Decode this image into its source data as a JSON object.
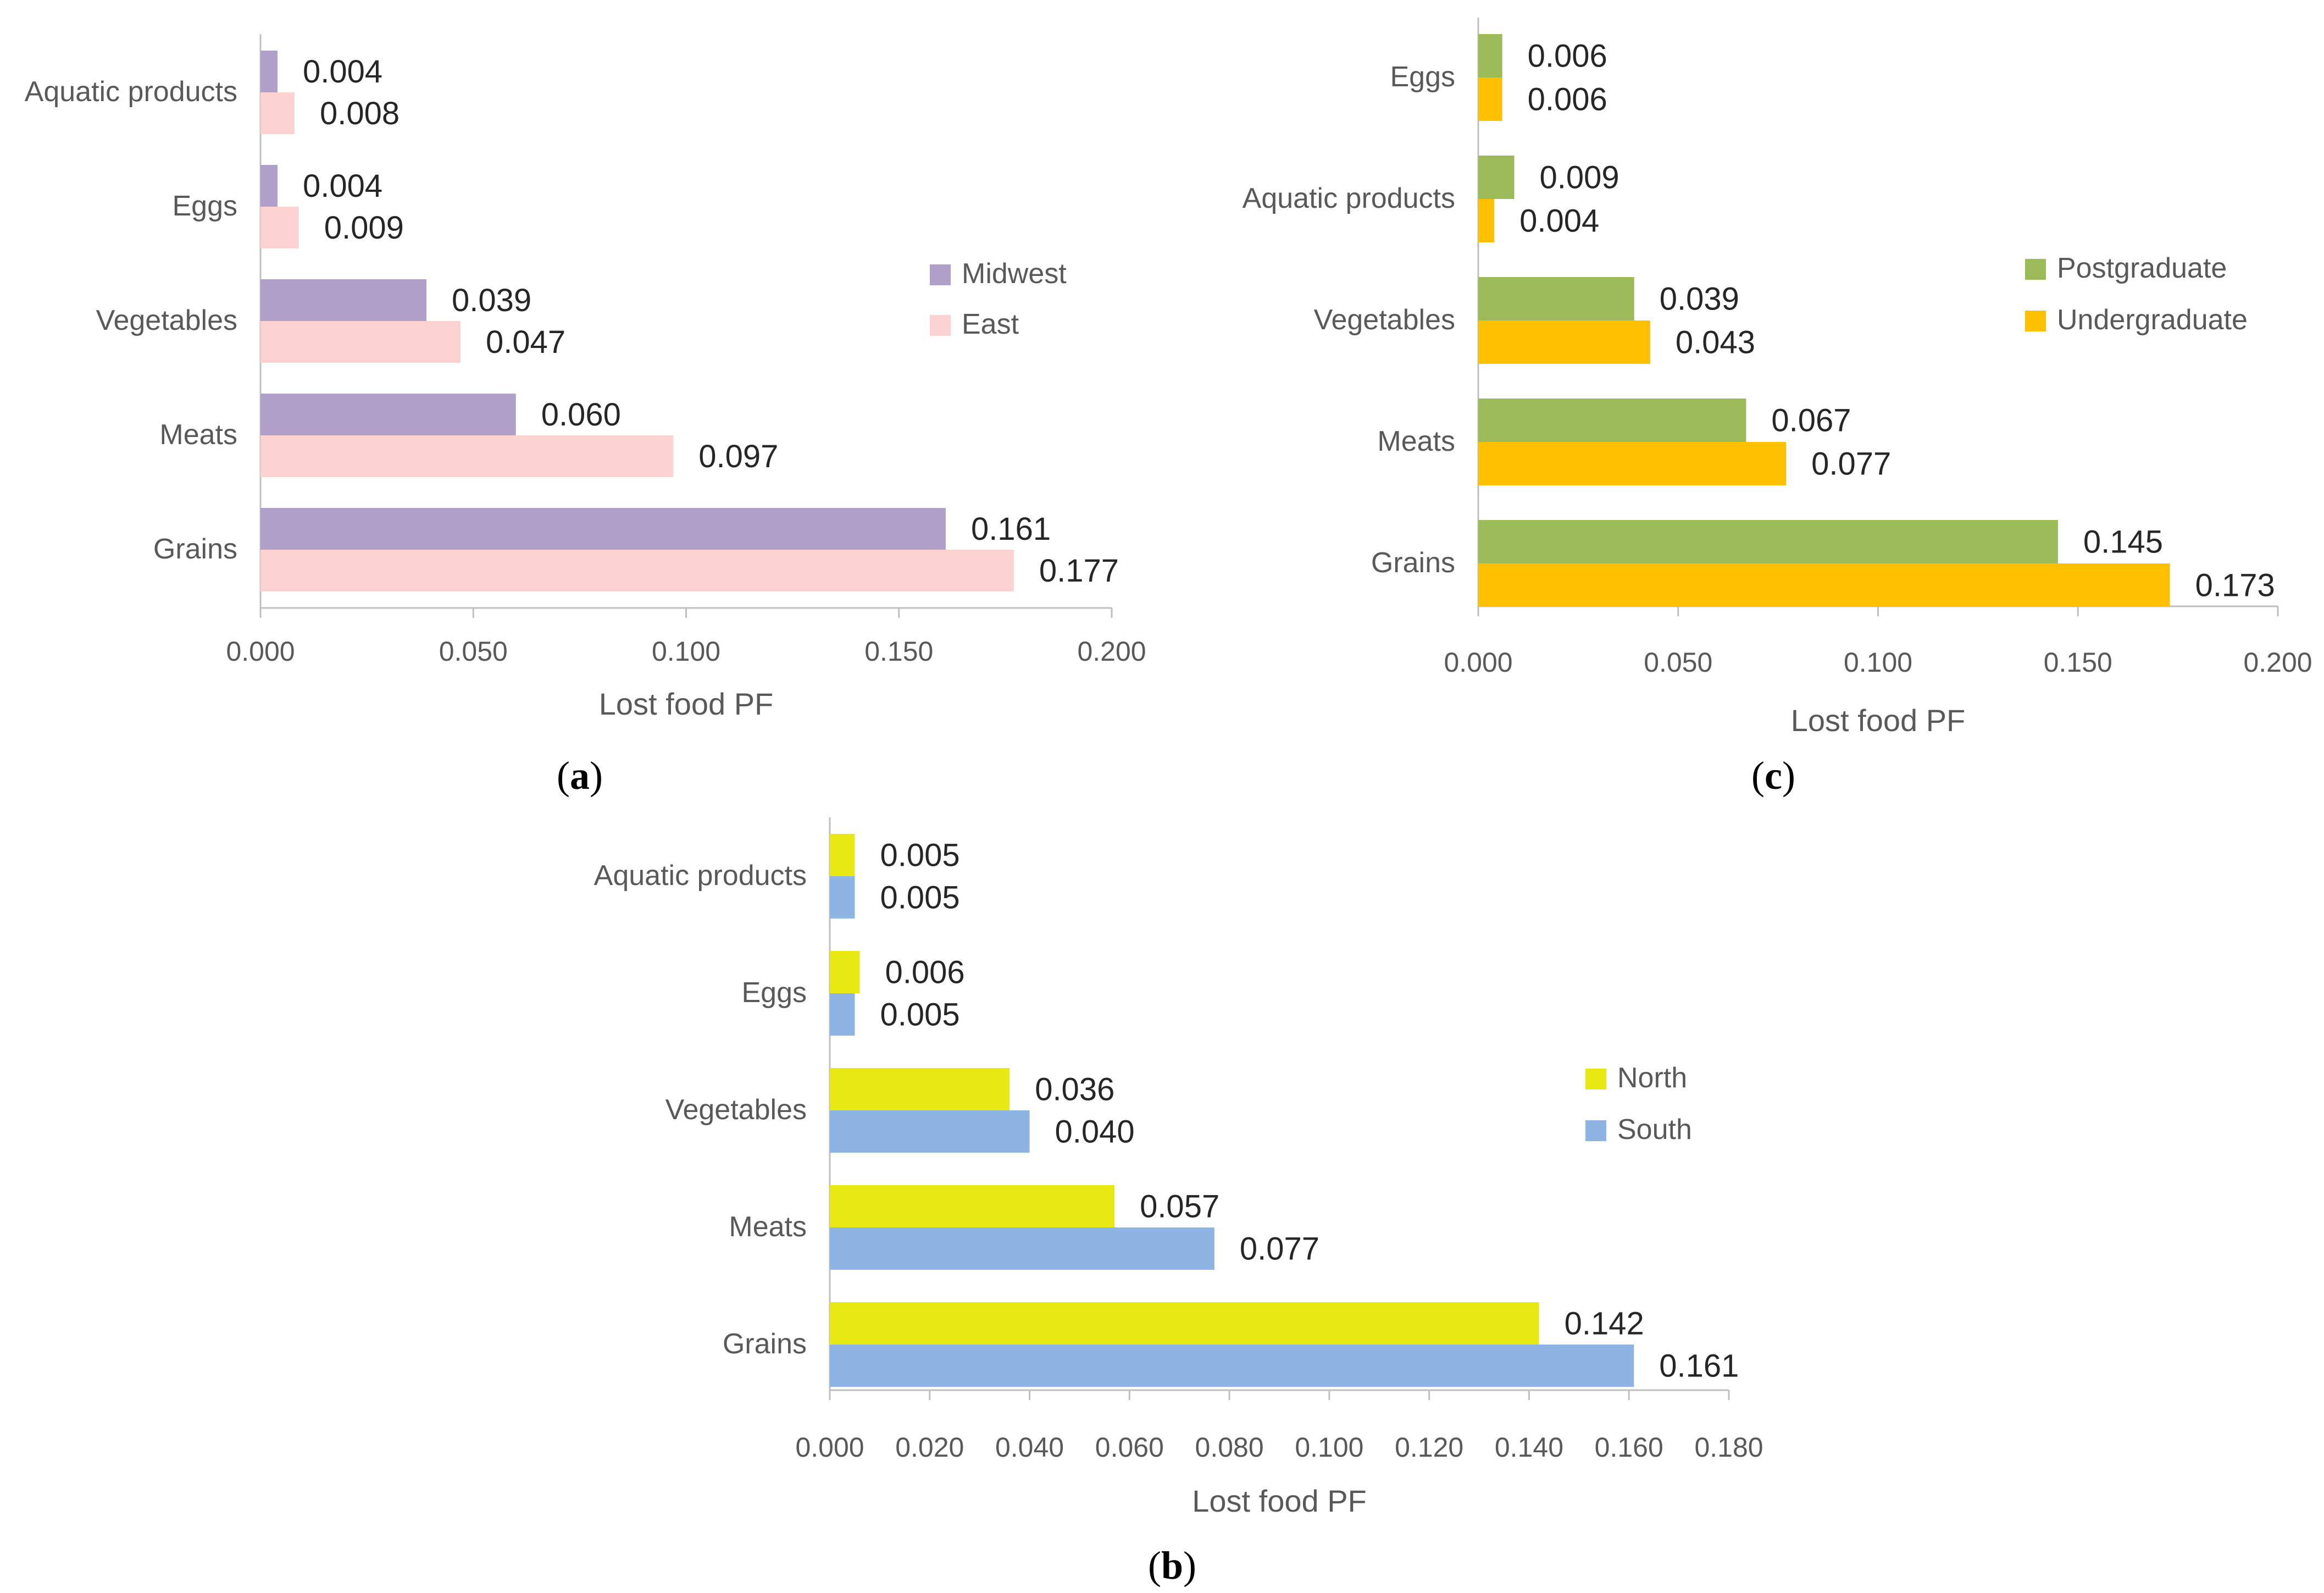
{
  "chart_data": [
    {
      "id": "a",
      "type": "bar",
      "orientation": "horizontal",
      "caption": "(a)",
      "categories": [
        "Aquatic products",
        "Eggs",
        "Vegetables",
        "Meats",
        "Grains"
      ],
      "series": [
        {
          "name": "Midwest",
          "color": "#b09fc8",
          "values": [
            0.004,
            0.004,
            0.039,
            0.06,
            0.161
          ],
          "labels": [
            "0.004",
            "0.004",
            "0.039",
            "0.060",
            "0.161"
          ]
        },
        {
          "name": "East",
          "color": "#fdd3d1",
          "values": [
            0.008,
            0.009,
            0.047,
            0.097,
            0.177
          ],
          "labels": [
            "0.008",
            "0.009",
            "0.047",
            "0.097",
            "0.177"
          ]
        }
      ],
      "xlabel": "Lost food PF",
      "xlim": [
        0,
        0.2
      ],
      "xticks": [
        "0.000",
        "0.050",
        "0.100",
        "0.150",
        "0.200"
      ],
      "legend_position": "right"
    },
    {
      "id": "c",
      "type": "bar",
      "orientation": "horizontal",
      "caption": "(c)",
      "categories": [
        "Eggs",
        "Aquatic products",
        "Vegetables",
        "Meats",
        "Grains"
      ],
      "series": [
        {
          "name": "Postgraduate",
          "color": "#9bbb59",
          "values": [
            0.006,
            0.009,
            0.039,
            0.067,
            0.145
          ],
          "labels": [
            "0.006",
            "0.009",
            "0.039",
            "0.067",
            "0.145"
          ]
        },
        {
          "name": "Undergraduate",
          "color": "#ffc000",
          "values": [
            0.006,
            0.004,
            0.043,
            0.077,
            0.173
          ],
          "labels": [
            "0.006",
            "0.004",
            "0.043",
            "0.077",
            "0.173"
          ]
        }
      ],
      "xlabel": "Lost food PF",
      "xlim": [
        0,
        0.2
      ],
      "xticks": [
        "0.000",
        "0.050",
        "0.100",
        "0.150",
        "0.200"
      ],
      "legend_position": "right"
    },
    {
      "id": "b",
      "type": "bar",
      "orientation": "horizontal",
      "caption": "(b)",
      "categories": [
        "Aquatic products",
        "Eggs",
        "Vegetables",
        "Meats",
        "Grains"
      ],
      "series": [
        {
          "name": "North",
          "color": "#e8e812",
          "values": [
            0.005,
            0.006,
            0.036,
            0.057,
            0.142
          ],
          "labels": [
            "0.005",
            "0.006",
            "0.036",
            "0.057",
            "0.142"
          ]
        },
        {
          "name": "South",
          "color": "#8eb4e3",
          "values": [
            0.005,
            0.005,
            0.04,
            0.077,
            0.161
          ],
          "labels": [
            "0.005",
            "0.005",
            "0.040",
            "0.077",
            "0.161"
          ]
        }
      ],
      "xlabel": "Lost food  PF",
      "xlim": [
        0,
        0.18
      ],
      "xticks": [
        "0.000",
        "0.020",
        "0.040",
        "0.060",
        "0.080",
        "0.100",
        "0.120",
        "0.140",
        "0.160",
        "0.180"
      ],
      "legend_position": "right"
    }
  ]
}
